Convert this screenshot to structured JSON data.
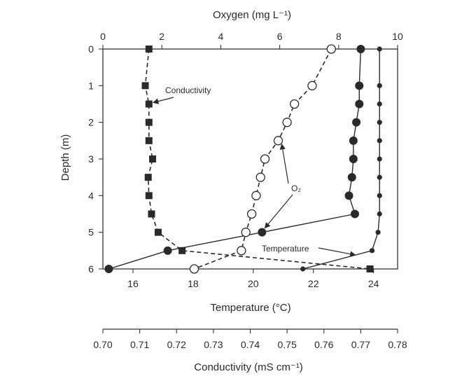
{
  "chart_data": {
    "type": "line",
    "axes": {
      "depth": {
        "label": "Depth (m)",
        "range": [
          0,
          6
        ],
        "ticks": [
          0,
          1,
          2,
          3,
          4,
          5,
          6
        ],
        "tick_labels": [
          "0",
          "1",
          "2",
          "3",
          "4",
          "5",
          "6"
        ],
        "inverted": true
      },
      "oxygen": {
        "label": "Oxygen (mg L⁻¹)",
        "position": "top",
        "range": [
          0,
          10
        ],
        "ticks": [
          0,
          2,
          4,
          6,
          8,
          10
        ],
        "tick_labels": [
          "0",
          "2",
          "4",
          "6",
          "8",
          "10"
        ]
      },
      "temperature": {
        "label": "Temperature (°C)",
        "position": "bottom",
        "range": [
          15,
          24.8
        ],
        "ticks": [
          16,
          18,
          20,
          22,
          24
        ],
        "tick_labels": [
          "16",
          "18",
          "20",
          "22",
          "24"
        ]
      },
      "conductivity": {
        "label": "Conductivity (mS cm⁻¹)",
        "position": "bottom-detached",
        "range": [
          0.7,
          0.78
        ],
        "ticks": [
          0.7,
          0.71,
          0.72,
          0.73,
          0.74,
          0.75,
          0.76,
          0.77,
          0.78
        ],
        "tick_labels": [
          "0.70",
          "0.71",
          "0.72",
          "0.73",
          "0.74",
          "0.75",
          "0.76",
          "0.77",
          "0.78"
        ]
      }
    },
    "series": [
      {
        "name": "Conductivity",
        "x_axis": "conductivity",
        "marker": "square-filled",
        "line": "dashed",
        "depth": [
          0,
          1,
          1.5,
          2,
          2.5,
          3,
          3.5,
          4,
          4.5,
          5,
          5.5,
          6,
          6
        ],
        "values": [
          0.7125,
          0.7115,
          0.7125,
          0.7125,
          0.7125,
          0.7135,
          0.7123,
          0.7125,
          0.7132,
          0.715,
          0.7215,
          0.7725,
          0.7725
        ]
      },
      {
        "name": "O₂ (open)",
        "x_axis": "oxygen",
        "marker": "circle-open",
        "line": "dashed",
        "depth": [
          0,
          1,
          1.5,
          2,
          2.5,
          3,
          3.5,
          4,
          4.5,
          5,
          5.5,
          6
        ],
        "values": [
          7.75,
          7.1,
          6.5,
          6.25,
          5.95,
          5.5,
          5.35,
          5.2,
          5.05,
          4.85,
          4.7,
          3.1
        ]
      },
      {
        "name": "O₂ (filled)",
        "x_axis": "oxygen",
        "marker": "circle-filled",
        "line": "solid",
        "depth": [
          0,
          1,
          1.5,
          2,
          2.5,
          3,
          3.5,
          4,
          4.5,
          5,
          5.5,
          6
        ],
        "values": [
          8.75,
          8.7,
          8.7,
          8.6,
          8.5,
          8.5,
          8.45,
          8.35,
          8.55,
          5.4,
          2.2,
          0.2
        ]
      },
      {
        "name": "Temperature",
        "x_axis": "temperature",
        "marker": "circle-small-filled",
        "line": "solid",
        "depth": [
          0,
          1,
          1.5,
          2,
          2.5,
          3,
          3.5,
          4,
          4.5,
          5,
          5.5,
          6
        ],
        "values": [
          24.2,
          24.2,
          24.2,
          24.2,
          24.2,
          24.2,
          24.2,
          24.2,
          24.2,
          24.15,
          23.95,
          21.65
        ]
      }
    ],
    "annotations": [
      {
        "text": "Conductivity",
        "arrow_to": {
          "series": "Conductivity",
          "depth": 1.5
        }
      },
      {
        "text": "O₂",
        "arrows_to": [
          {
            "series": "O₂ (open)",
            "depth": 2.5
          },
          {
            "series": "O₂ (filled)",
            "depth": 5
          }
        ]
      },
      {
        "text": "Temperature",
        "arrow_to": {
          "series": "Temperature",
          "depth": 5.6
        }
      }
    ],
    "grid": false,
    "legend": "none",
    "colors": {
      "ink": "#2a2a2a",
      "background": "#ffffff"
    }
  }
}
